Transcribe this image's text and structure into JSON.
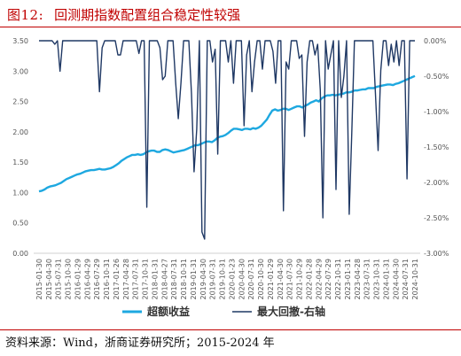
{
  "figure": {
    "label": "图12:",
    "title": "回测期指数配置组合稳定性较强",
    "source": "资料来源：Wind，浙商证券研究所；2015-2024 年"
  },
  "chart_data": {
    "type": "line",
    "x_ticks": [
      "2015-01-30",
      "2015-04-30",
      "2015-07-31",
      "2015-10-30",
      "2016-01-29",
      "2016-04-29",
      "2016-07-29",
      "2016-10-31",
      "2017-01-26",
      "2017-04-28",
      "2017-07-31",
      "2017-10-31",
      "2018-01-31",
      "2018-04-27",
      "2018-07-31",
      "2018-10-31",
      "2019-01-31",
      "2019-04-30",
      "2019-07-31",
      "2019-10-31",
      "2020-01-23",
      "2020-04-30",
      "2020-07-31",
      "2020-10-30",
      "2021-01-29",
      "2021-04-30",
      "2021-07-30",
      "2021-10-29",
      "2022-01-28",
      "2022-04-29",
      "2022-07-29",
      "2022-10-31",
      "2023-01-31",
      "2023-04-28",
      "2023-07-31",
      "2023-10-31",
      "2024-01-31",
      "2024-04-30",
      "2024-07-31",
      "2024-10-31"
    ],
    "left_axis": {
      "ticks": [
        "0.00",
        "0.50",
        "1.00",
        "1.50",
        "2.00",
        "2.50",
        "3.00",
        "3.50"
      ],
      "min": 0,
      "max": 3.5
    },
    "right_axis": {
      "ticks": [
        "0.00%",
        "-0.50%",
        "-1.00%",
        "-1.50%",
        "-2.00%",
        "-2.50%",
        "-3.00%"
      ],
      "min": -3.0,
      "max": 0
    },
    "series": [
      {
        "name": "超额收益",
        "axis": "left",
        "color": "#1ea8e0",
        "values": [
          1.02,
          1.03,
          1.05,
          1.08,
          1.1,
          1.11,
          1.12,
          1.14,
          1.16,
          1.19,
          1.22,
          1.24,
          1.26,
          1.28,
          1.3,
          1.31,
          1.33,
          1.35,
          1.36,
          1.37,
          1.37,
          1.38,
          1.39,
          1.38,
          1.38,
          1.39,
          1.4,
          1.42,
          1.45,
          1.48,
          1.52,
          1.55,
          1.58,
          1.6,
          1.62,
          1.62,
          1.63,
          1.62,
          1.63,
          1.66,
          1.68,
          1.69,
          1.69,
          1.67,
          1.67,
          1.7,
          1.71,
          1.7,
          1.68,
          1.66,
          1.67,
          1.68,
          1.69,
          1.7,
          1.72,
          1.74,
          1.76,
          1.78,
          1.78,
          1.8,
          1.82,
          1.84,
          1.84,
          1.83,
          1.86,
          1.9,
          1.92,
          1.93,
          1.95,
          1.98,
          2.02,
          2.05,
          2.05,
          2.04,
          2.03,
          2.05,
          2.05,
          2.04,
          2.06,
          2.05,
          2.07,
          2.1,
          2.15,
          2.2,
          2.28,
          2.35,
          2.37,
          2.35,
          2.36,
          2.38,
          2.38,
          2.36,
          2.38,
          2.4,
          2.42,
          2.42,
          2.4,
          2.43,
          2.45,
          2.48,
          2.5,
          2.52,
          2.5,
          2.55,
          2.58,
          2.6,
          2.6,
          2.61,
          2.6,
          2.61,
          2.62,
          2.63,
          2.65,
          2.65,
          2.66,
          2.68,
          2.68,
          2.69,
          2.7,
          2.7,
          2.72,
          2.72,
          2.72,
          2.74,
          2.75,
          2.76,
          2.77,
          2.78,
          2.78,
          2.77,
          2.79,
          2.8,
          2.82,
          2.84,
          2.86,
          2.88,
          2.9,
          2.92
        ]
      },
      {
        "name": "最大回撤-右轴",
        "axis": "right",
        "color": "#1f3864",
        "values": [
          0,
          0,
          0,
          0,
          0,
          0,
          -0.05,
          0,
          -0.43,
          0,
          0,
          0,
          0,
          0,
          0,
          0,
          0,
          0,
          0,
          0,
          0,
          0,
          0,
          -0.72,
          -0.1,
          0,
          0,
          0,
          0,
          0,
          -0.2,
          -0.2,
          0,
          0,
          0,
          0,
          0,
          0,
          -0.18,
          0,
          0,
          -2.35,
          0,
          0,
          0,
          0,
          -0.1,
          -0.55,
          -0.5,
          0,
          0,
          0,
          -0.6,
          -1.1,
          -0.6,
          0,
          0,
          0,
          -0.75,
          -1.85,
          -1.25,
          0,
          -2.7,
          -2.8,
          0,
          0,
          -0.3,
          -0.12,
          -1.6,
          0,
          0,
          0,
          -0.3,
          0,
          -0.6,
          0,
          0,
          0,
          -1.2,
          -0.2,
          0,
          -0.72,
          -0.3,
          0,
          0,
          -0.4,
          0,
          0,
          0,
          -0.15,
          -0.6,
          0,
          0,
          -2.4,
          -0.3,
          -0.4,
          0,
          0,
          0,
          -0.25,
          -0.2,
          -1.35,
          -0.3,
          0,
          0,
          -0.2,
          -0.05,
          -0.7,
          -2.5,
          0,
          -0.4,
          -0.2,
          0,
          -2.1,
          0,
          -0.8,
          -0.5,
          0,
          -2.45,
          -1.3,
          0,
          0,
          0,
          0,
          0,
          0,
          0,
          0,
          -0.75,
          -1.55,
          -0.42,
          0,
          0,
          -0.35,
          -0.05,
          -0.3,
          0,
          -0.35,
          0,
          0,
          -1.95,
          0,
          0,
          0
        ]
      }
    ]
  }
}
